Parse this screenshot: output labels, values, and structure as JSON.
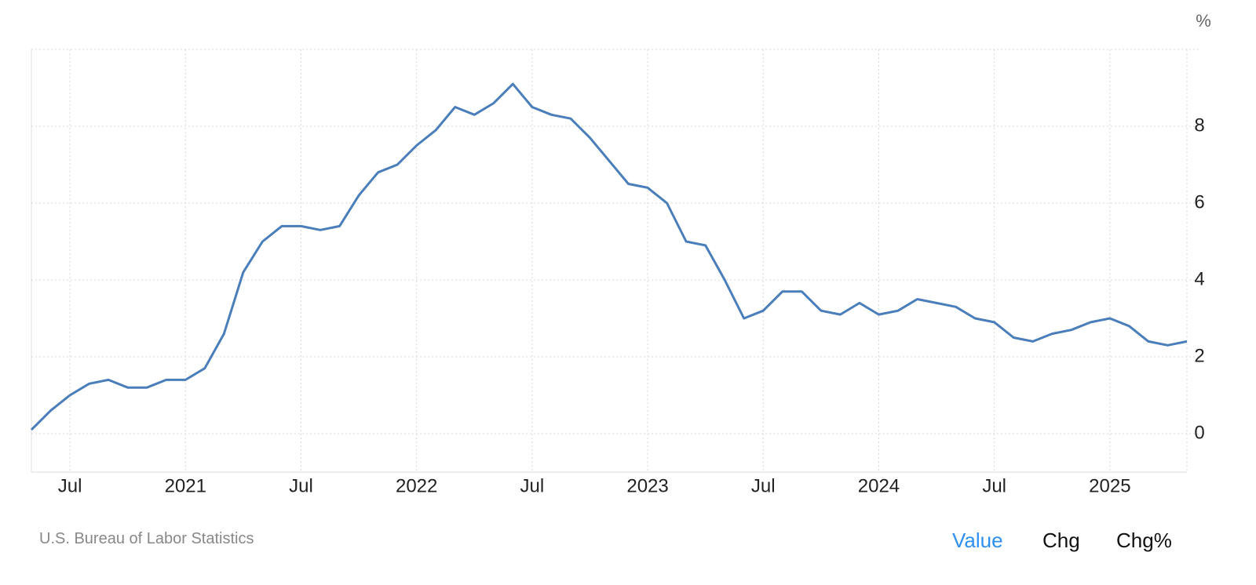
{
  "chart_data": {
    "type": "line",
    "unit": "%",
    "color": "#4a7ebb",
    "x": [
      "2020-05",
      "2020-06",
      "2020-07",
      "2020-08",
      "2020-09",
      "2020-10",
      "2020-11",
      "2020-12",
      "2021-01",
      "2021-02",
      "2021-03",
      "2021-04",
      "2021-05",
      "2021-06",
      "2021-07",
      "2021-08",
      "2021-09",
      "2021-10",
      "2021-11",
      "2021-12",
      "2022-01",
      "2022-02",
      "2022-03",
      "2022-04",
      "2022-05",
      "2022-06",
      "2022-07",
      "2022-08",
      "2022-09",
      "2022-10",
      "2022-11",
      "2022-12",
      "2023-01",
      "2023-02",
      "2023-03",
      "2023-04",
      "2023-05",
      "2023-06",
      "2023-07",
      "2023-08",
      "2023-09",
      "2023-10",
      "2023-11",
      "2023-12",
      "2024-01",
      "2024-02",
      "2024-03",
      "2024-04",
      "2024-05",
      "2024-06",
      "2024-07",
      "2024-08",
      "2024-09",
      "2024-10",
      "2024-11",
      "2024-12",
      "2025-01",
      "2025-02",
      "2025-03",
      "2025-04",
      "2025-05"
    ],
    "values": [
      0.1,
      0.6,
      1.0,
      1.3,
      1.4,
      1.2,
      1.2,
      1.4,
      1.4,
      1.7,
      2.6,
      4.2,
      5.0,
      5.4,
      5.4,
      5.3,
      5.4,
      6.2,
      6.8,
      7.0,
      7.5,
      7.9,
      8.5,
      8.3,
      8.6,
      9.1,
      8.5,
      8.3,
      8.2,
      7.7,
      7.1,
      6.5,
      6.4,
      6.0,
      5.0,
      4.9,
      4.0,
      3.0,
      3.2,
      3.7,
      3.7,
      3.2,
      3.1,
      3.4,
      3.1,
      3.2,
      3.5,
      3.4,
      3.3,
      3.0,
      2.9,
      2.5,
      2.4,
      2.6,
      2.7,
      2.9,
      3.0,
      2.8,
      2.4,
      2.3,
      2.4
    ],
    "xlim": [
      "2020-05",
      "2025-05"
    ],
    "xticks": [
      {
        "value": "2020-07",
        "label": "Jul"
      },
      {
        "value": "2021-01",
        "label": "2021"
      },
      {
        "value": "2021-07",
        "label": "Jul"
      },
      {
        "value": "2022-01",
        "label": "2022"
      },
      {
        "value": "2022-07",
        "label": "Jul"
      },
      {
        "value": "2023-01",
        "label": "2023"
      },
      {
        "value": "2023-07",
        "label": "Jul"
      },
      {
        "value": "2024-01",
        "label": "2024"
      },
      {
        "value": "2024-07",
        "label": "Jul"
      },
      {
        "value": "2025-01",
        "label": "2025"
      }
    ],
    "ylim": [
      -1,
      10
    ],
    "yticks": [
      0,
      2,
      4,
      6,
      8
    ],
    "grid": true
  },
  "source": "U.S. Bureau of Labor Statistics",
  "buttons": [
    "Value",
    "Chg",
    "Chg%"
  ]
}
